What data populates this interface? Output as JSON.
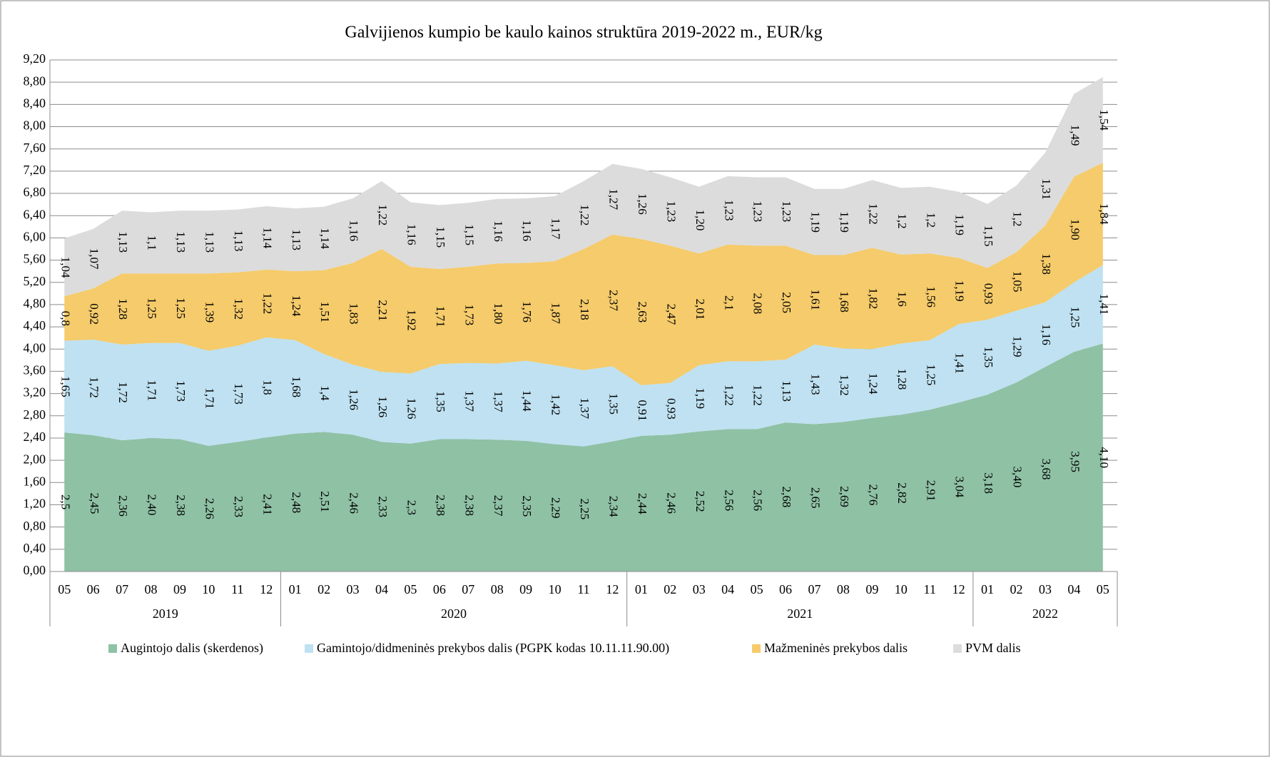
{
  "chart_data": {
    "type": "stacked-area",
    "title": "Galvijienos kumpio be kaulo kainos struktūra 2019-2022 m., EUR/kg",
    "categories": [
      "05",
      "06",
      "07",
      "08",
      "09",
      "10",
      "11",
      "12",
      "01",
      "02",
      "03",
      "04",
      "05",
      "06",
      "07",
      "08",
      "09",
      "10",
      "11",
      "12",
      "01",
      "02",
      "03",
      "04",
      "05",
      "06",
      "07",
      "08",
      "09",
      "10",
      "11",
      "12",
      "01",
      "02",
      "03",
      "04",
      "05"
    ],
    "years": [
      "2019",
      "2020",
      "2021",
      "2022"
    ],
    "ylim": [
      0,
      9.2
    ],
    "yticks": [
      {
        "value": 0,
        "label": "0,00"
      },
      {
        "value": 0.4,
        "label": "0,40"
      },
      {
        "value": 0.8,
        "label": "0,80"
      },
      {
        "value": 1.2,
        "label": "1,20"
      },
      {
        "value": 1.6,
        "label": "1,60"
      },
      {
        "value": 2,
        "label": "2,00"
      },
      {
        "value": 2.4,
        "label": "2,40"
      },
      {
        "value": 2.8,
        "label": "2,80"
      },
      {
        "value": 3.2,
        "label": "3,20"
      },
      {
        "value": 3.6,
        "label": "3,60"
      },
      {
        "value": 4,
        "label": "4,00"
      },
      {
        "value": 4.4,
        "label": "4,40"
      },
      {
        "value": 4.8,
        "label": "4,80"
      },
      {
        "value": 5.2,
        "label": "5,20"
      },
      {
        "value": 5.6,
        "label": "5,60"
      },
      {
        "value": 6,
        "label": "6,00"
      },
      {
        "value": 6.4,
        "label": "6,40"
      },
      {
        "value": 6.8,
        "label": "6,80"
      },
      {
        "value": 7.2,
        "label": "7,20"
      },
      {
        "value": 7.6,
        "label": "7,60"
      },
      {
        "value": 8,
        "label": "8,00"
      },
      {
        "value": 8.4,
        "label": "8,40"
      },
      {
        "value": 8.8,
        "label": "8,80"
      },
      {
        "value": 9.2,
        "label": "9,20"
      }
    ],
    "grid": true,
    "legend": "bottom",
    "series": [
      {
        "name": "Augintojo dalis (skerdenos)",
        "color": "#8fc1a5",
        "values": [
          2.5,
          2.45,
          2.36,
          2.4,
          2.38,
          2.26,
          2.33,
          2.41,
          2.48,
          2.51,
          2.46,
          2.33,
          2.3,
          2.38,
          2.38,
          2.37,
          2.35,
          2.29,
          2.25,
          2.34,
          2.44,
          2.46,
          2.52,
          2.56,
          2.56,
          2.68,
          2.65,
          2.69,
          2.76,
          2.82,
          2.91,
          3.04,
          3.18,
          3.4,
          3.68,
          3.95,
          4.1
        ],
        "value_labels": [
          "2,5",
          "2,45",
          "2,36",
          "2,40",
          "2,38",
          "2,26",
          "2,33",
          "2,41",
          "2,48",
          "2,51",
          "2,46",
          "2,33",
          "2,3",
          "2,38",
          "2,38",
          "2,37",
          "2,35",
          "2,29",
          "2,25",
          "2,34",
          "2,44",
          "2,46",
          "2,52",
          "2,56",
          "2,56",
          "2,68",
          "2,65",
          "2,69",
          "2,76",
          "2,82",
          "2,91",
          "3,04",
          "3,18",
          "3,40",
          "3,68",
          "3,95",
          "4,10"
        ]
      },
      {
        "name": "Gamintojo/didmeninės prekybos dalis (PGPK kodas 10.11.11.90.00)",
        "color": "#bfe1f1",
        "values": [
          1.65,
          1.72,
          1.72,
          1.71,
          1.73,
          1.71,
          1.73,
          1.8,
          1.68,
          1.4,
          1.26,
          1.26,
          1.26,
          1.35,
          1.37,
          1.37,
          1.44,
          1.42,
          1.37,
          1.35,
          0.91,
          0.93,
          1.19,
          1.22,
          1.22,
          1.13,
          1.43,
          1.32,
          1.24,
          1.28,
          1.25,
          1.41,
          1.35,
          1.29,
          1.16,
          1.25,
          1.41
        ],
        "value_labels": [
          "1,65",
          "1,72",
          "1,72",
          "1,71",
          "1,73",
          "1,71",
          "1,73",
          "1,8",
          "1,68",
          "1,4",
          "1,26",
          "1,26",
          "1,26",
          "1,35",
          "1,37",
          "1,37",
          "1,44",
          "1,42",
          "1,37",
          "1,35",
          "0,91",
          "0,93",
          "1,19",
          "1,22",
          "1,22",
          "1,13",
          "1,43",
          "1,32",
          "1,24",
          "1,28",
          "1,25",
          "1,41",
          "1,35",
          "1,29",
          "1,16",
          "1,25",
          "1,41"
        ]
      },
      {
        "name": "Mažmeninės prekybos dalis",
        "color": "#f5cb6b",
        "values": [
          0.8,
          0.92,
          1.28,
          1.25,
          1.25,
          1.39,
          1.32,
          1.22,
          1.24,
          1.51,
          1.83,
          2.21,
          1.92,
          1.71,
          1.73,
          1.8,
          1.76,
          1.87,
          2.18,
          2.37,
          2.63,
          2.47,
          2.01,
          2.1,
          2.08,
          2.05,
          1.61,
          1.68,
          1.82,
          1.6,
          1.56,
          1.19,
          0.93,
          1.05,
          1.38,
          1.9,
          1.84
        ],
        "value_labels": [
          "0,8",
          "0,92",
          "1,28",
          "1,25",
          "1,25",
          "1,39",
          "1,32",
          "1,22",
          "1,24",
          "1,51",
          "1,83",
          "2,21",
          "1,92",
          "1,71",
          "1,73",
          "1,80",
          "1,76",
          "1,87",
          "2,18",
          "2,37",
          "2,63",
          "2,47",
          "2,01",
          "2,1",
          "2,08",
          "2,05",
          "1,61",
          "1,68",
          "1,82",
          "1,6",
          "1,56",
          "1,19",
          "0,93",
          "1,05",
          "1,38",
          "1,90",
          "1,84"
        ]
      },
      {
        "name": "PVM dalis",
        "color": "#dcdcdc",
        "values": [
          1.04,
          1.07,
          1.13,
          1.1,
          1.13,
          1.13,
          1.13,
          1.14,
          1.13,
          1.14,
          1.16,
          1.22,
          1.16,
          1.15,
          1.15,
          1.16,
          1.16,
          1.17,
          1.22,
          1.27,
          1.26,
          1.23,
          1.2,
          1.23,
          1.23,
          1.23,
          1.19,
          1.19,
          1.22,
          1.2,
          1.2,
          1.19,
          1.15,
          1.2,
          1.31,
          1.49,
          1.54
        ],
        "value_labels": [
          "1,04",
          "1,07",
          "1,13",
          "1,1",
          "1,13",
          "1,13",
          "1,13",
          "1,14",
          "1,13",
          "1,14",
          "1,16",
          "1,22",
          "1,16",
          "1,15",
          "1,15",
          "1,16",
          "1,16",
          "1,17",
          "1,22",
          "1,27",
          "1,26",
          "1,23",
          "1,20",
          "1,23",
          "1,23",
          "1,23",
          "1,19",
          "1,19",
          "1,22",
          "1,2",
          "1,2",
          "1,19",
          "1,15",
          "1,2",
          "1,31",
          "1,49",
          "1,54"
        ]
      }
    ]
  }
}
